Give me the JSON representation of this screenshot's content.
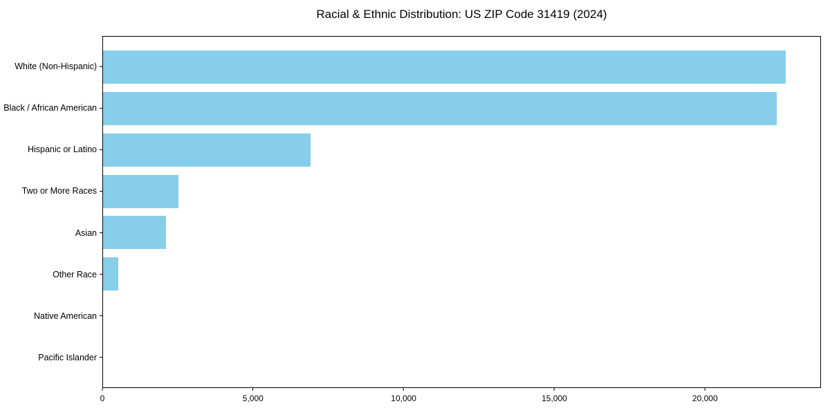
{
  "chart_data": {
    "type": "bar",
    "orientation": "horizontal",
    "title": "Racial & Ethnic Distribution: US ZIP Code 31419 (2024)",
    "categories": [
      "White (Non-Hispanic)",
      "Black / African American",
      "Hispanic or Latino",
      "Two or More Races",
      "Asian",
      "Other Race",
      "Native American",
      "Pacific Islander"
    ],
    "values": [
      22700,
      22400,
      6900,
      2500,
      2100,
      500,
      0,
      0
    ],
    "xlabel": "",
    "ylabel": "",
    "xlim": [
      0,
      23850
    ],
    "x_ticks": [
      0,
      5000,
      10000,
      15000,
      20000
    ],
    "x_tick_labels": [
      "0",
      "5,000",
      "10,000",
      "15,000",
      "20,000"
    ],
    "bar_color": "#87CEEB",
    "axis_color": "#000000",
    "background_color": "#ffffff",
    "grid": false,
    "legend": null
  }
}
